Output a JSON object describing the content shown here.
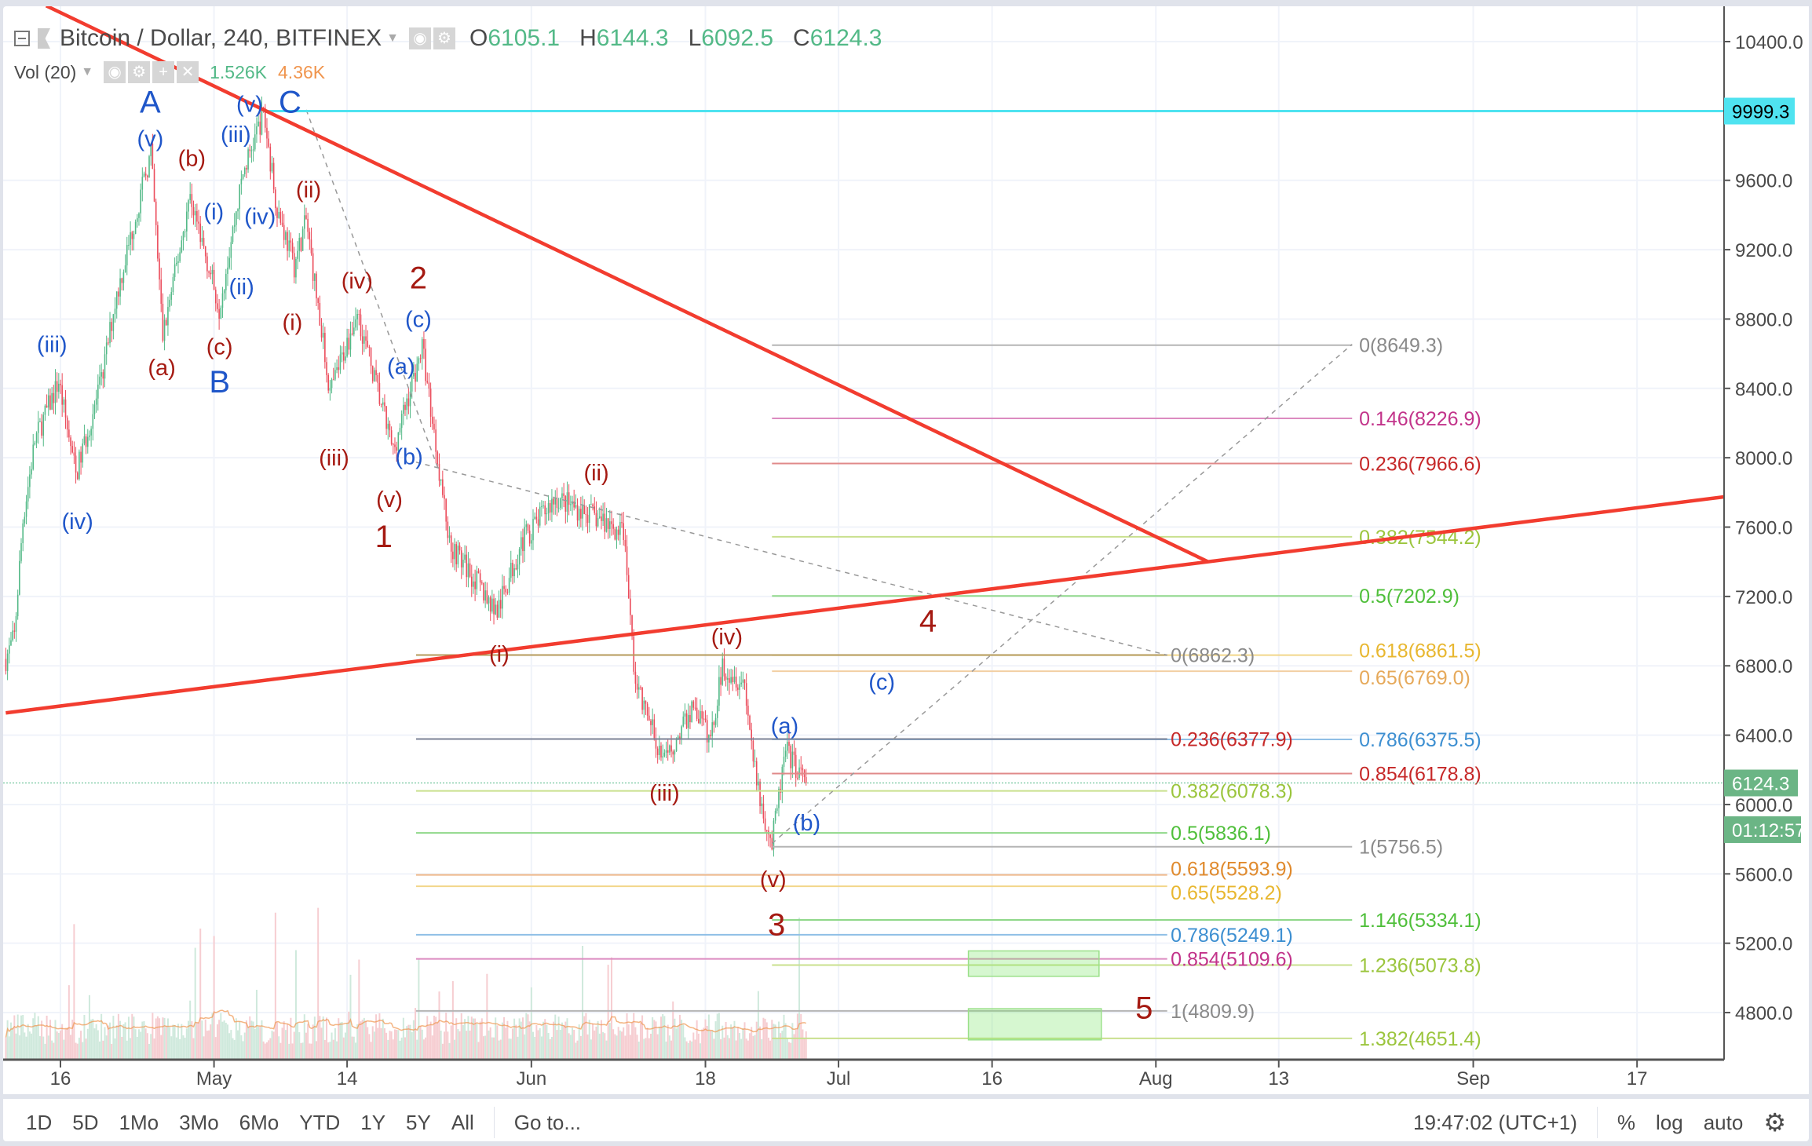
{
  "header": {
    "symbol_title": "Bitcoin / Dollar, 240, BITFINEX",
    "ohlc": [
      {
        "label": "O",
        "value": "6105.1"
      },
      {
        "label": "H",
        "value": "6144.3"
      },
      {
        "label": "L",
        "value": "6092.5"
      },
      {
        "label": "C",
        "value": "6124.3"
      }
    ],
    "volume_indicator": {
      "label": "Vol (20)",
      "value": "1.526K",
      "ma_value": "4.36K"
    }
  },
  "toolbar": {
    "ranges": [
      "1D",
      "5D",
      "1Mo",
      "3Mo",
      "6Mo",
      "YTD",
      "1Y",
      "5Y",
      "All"
    ],
    "goto_label": "Go to...",
    "clock": "19:47:02 (UTC+1)",
    "percent_label": "%",
    "log_label": "log",
    "auto_label": "auto",
    "settings_icon": "gear-icon"
  },
  "colors": {
    "up": "#53b987",
    "down": "#eb4d5c",
    "trendline": "#f23c2f",
    "horizontal_level": "#4fe3f0",
    "wave_blue": "#1f56c9",
    "wave_red": "#a51a12"
  },
  "chart_data": {
    "type": "candlestick",
    "interval": "240",
    "y_ticks": [
      "10400.0",
      "9600.0",
      "9200.0",
      "8800.0",
      "8400.0",
      "8000.0",
      "7600.0",
      "7200.0",
      "6800.0",
      "6400.0",
      "6000.0",
      "5600.0",
      "5200.0",
      "4800.0"
    ],
    "x_ticks": [
      {
        "label": "16",
        "date": "2018-04-16"
      },
      {
        "label": "May",
        "date": "2018-05-01"
      },
      {
        "label": "14",
        "date": "2018-05-14"
      },
      {
        "label": "Jun",
        "date": "2018-06-01"
      },
      {
        "label": "18",
        "date": "2018-06-18"
      },
      {
        "label": "Jul",
        "date": "2018-07-01"
      },
      {
        "label": "16",
        "date": "2018-07-16"
      },
      {
        "label": "Aug",
        "date": "2018-08-01"
      },
      {
        "label": "13",
        "date": "2018-08-13"
      },
      {
        "label": "Sep",
        "date": "2018-09-01"
      },
      {
        "label": "17",
        "date": "2018-09-17"
      }
    ],
    "price_path": [
      [
        "2018-04-10T16:00",
        6840
      ],
      [
        "2018-04-11T12:00",
        6970
      ],
      [
        "2018-04-12T08:00",
        7640
      ],
      [
        "2018-04-13T12:00",
        8100
      ],
      [
        "2018-04-15T20:00",
        8440
      ],
      [
        "2018-04-17T12:00",
        7900
      ],
      [
        "2018-04-20T00:00",
        8440
      ],
      [
        "2018-04-21T08:00",
        8900
      ],
      [
        "2018-04-24T20:00",
        9760
      ],
      [
        "2018-04-26T00:00",
        8700
      ],
      [
        "2018-04-28T16:00",
        9510
      ],
      [
        "2018-05-01T12:00",
        8870
      ],
      [
        "2018-05-03T20:00",
        9640
      ],
      [
        "2018-05-05T20:00",
        9990
      ],
      [
        "2018-05-07T04:00",
        9440
      ],
      [
        "2018-05-08T20:00",
        9110
      ],
      [
        "2018-05-10T00:00",
        9370
      ],
      [
        "2018-05-12T08:00",
        8370
      ],
      [
        "2018-05-15T00:00",
        8840
      ],
      [
        "2018-05-18T12:00",
        8040
      ],
      [
        "2018-05-21T08:00",
        8640
      ],
      [
        "2018-05-24T00:00",
        7510
      ],
      [
        "2018-05-28T16:00",
        7110
      ],
      [
        "2018-05-31T00:00",
        7510
      ],
      [
        "2018-06-03T08:00",
        7770
      ],
      [
        "2018-06-07T20:00",
        7640
      ],
      [
        "2018-06-10T00:00",
        7570
      ],
      [
        "2018-06-11T04:00",
        6700
      ],
      [
        "2018-06-14T00:00",
        6240
      ],
      [
        "2018-06-16T20:00",
        6570
      ],
      [
        "2018-06-18T12:00",
        6370
      ],
      [
        "2018-06-19T16:00",
        6800
      ],
      [
        "2018-06-21T20:00",
        6700
      ],
      [
        "2018-06-23T00:00",
        6100
      ],
      [
        "2018-06-24T12:00",
        5770
      ],
      [
        "2018-06-25T20:00",
        6310
      ],
      [
        "2018-06-27T20:00",
        6124.3
      ]
    ],
    "last_price": "6124.3",
    "countdown": "01:12:57",
    "horizontal_level": "9999.3",
    "fib_extension": [
      {
        "label": "0(8649.3)",
        "price": 8649.3,
        "color": "#8a8a8a",
        "line": "#b5b5b5"
      },
      {
        "label": "0.146(8226.9)",
        "price": 8226.9,
        "color": "#c2338a",
        "line": "#dc8bc0"
      },
      {
        "label": "0.236(7966.6)",
        "price": 7966.6,
        "color": "#c62828",
        "line": "#e08a8a"
      },
      {
        "label": "0.382(7544.2)",
        "price": 7544.2,
        "color": "#9bc53d",
        "line": "#c9e08e"
      },
      {
        "label": "0.5(7202.9)",
        "price": 7202.9,
        "color": "#4fbf3a",
        "line": "#8fd88a"
      },
      {
        "label": "0.618(6861.5)",
        "price": 6861.5,
        "color": "#e8b730",
        "line": "#f2d68a"
      },
      {
        "label": "0.65(6769.0)",
        "price": 6769.0,
        "color": "#e6a95a",
        "line": "#f2cfa3"
      },
      {
        "label": "0.786(6375.5)",
        "price": 6375.5,
        "color": "#3d8fd1",
        "line": "#8fbfe6"
      },
      {
        "label": "0.854(6178.8)",
        "price": 6178.8,
        "color": "#c62828",
        "line": "#e08a8a"
      },
      {
        "label": "1(5756.5)",
        "price": 5756.5,
        "color": "#8a8a8a",
        "line": "#b5b5b5"
      },
      {
        "label": "1.146(5334.1)",
        "price": 5334.1,
        "color": "#4fbf3a",
        "line": "#8fd88a"
      },
      {
        "label": "1.236(5073.8)",
        "price": 5073.8,
        "color": "#9bc53d",
        "line": "#c9e08e"
      },
      {
        "label": "1.382(4651.4)",
        "price": 4651.4,
        "color": "#9bc53d",
        "line": "#c9e08e"
      }
    ],
    "fib_retracement": [
      {
        "label": "0(6862.3)",
        "price": 6862.3,
        "color": "#8a8a8a",
        "line": "#b59a5a"
      },
      {
        "label": "0.236(6377.9)",
        "price": 6377.9,
        "color": "#c62828",
        "line": "#7b8296"
      },
      {
        "label": "0.382(6078.3)",
        "price": 6078.3,
        "color": "#9bc53d",
        "line": "#c9e08e"
      },
      {
        "label": "0.5(5836.1)",
        "price": 5836.1,
        "color": "#4fbf3a",
        "line": "#8fd88a"
      },
      {
        "label": "0.618(5593.9)",
        "price": 5593.9,
        "color": "#e08a2d",
        "line": "#eeb88a"
      },
      {
        "label": "0.65(5528.2)",
        "price": 5528.2,
        "color": "#e8b730",
        "line": "#f2d68a"
      },
      {
        "label": "0.786(5249.1)",
        "price": 5249.1,
        "color": "#3d8fd1",
        "line": "#8fbfe6"
      },
      {
        "label": "0.854(5109.6)",
        "price": 5109.6,
        "color": "#c2338a",
        "line": "#dc8bc0"
      },
      {
        "label": "1(4809.9)",
        "price": 4809.9,
        "color": "#8a8a8a",
        "line": "#b5b5b5"
      }
    ],
    "wave_labels": [
      {
        "text": "A",
        "color": "blue"
      },
      {
        "text": "(v)",
        "color": "blue"
      },
      {
        "text": "(iii)",
        "color": "blue"
      },
      {
        "text": "(iv)",
        "color": "blue"
      },
      {
        "text": "(i)",
        "color": "blue"
      },
      {
        "text": "(iv)",
        "color": "blue"
      },
      {
        "text": "(ii)",
        "color": "blue"
      },
      {
        "text": "B",
        "color": "blue"
      },
      {
        "text": "C",
        "color": "blue"
      },
      {
        "text": "(v)",
        "color": "blue"
      },
      {
        "text": "(iii)",
        "color": "blue"
      },
      {
        "text": "(c)",
        "color": "blue"
      },
      {
        "text": "(a)",
        "color": "blue"
      },
      {
        "text": "(b)",
        "color": "blue"
      },
      {
        "text": "(c)",
        "color": "blue"
      },
      {
        "text": "(a)",
        "color": "blue"
      },
      {
        "text": "(b)",
        "color": "blue"
      },
      {
        "text": "(b)",
        "color": "red"
      },
      {
        "text": "(a)",
        "color": "red"
      },
      {
        "text": "(c)",
        "color": "red"
      },
      {
        "text": "(ii)",
        "color": "red"
      },
      {
        "text": "(i)",
        "color": "red"
      },
      {
        "text": "(iv)",
        "color": "red"
      },
      {
        "text": "2",
        "color": "red"
      },
      {
        "text": "(iii)",
        "color": "red"
      },
      {
        "text": "(v)",
        "color": "red"
      },
      {
        "text": "1",
        "color": "red"
      },
      {
        "text": "(ii)",
        "color": "red"
      },
      {
        "text": "(i)",
        "color": "red"
      },
      {
        "text": "(iv)",
        "color": "red"
      },
      {
        "text": "(iii)",
        "color": "red"
      },
      {
        "text": "(v)",
        "color": "red"
      },
      {
        "text": "3",
        "color": "red"
      },
      {
        "text": "4",
        "color": "red"
      },
      {
        "text": "5",
        "color": "red"
      }
    ]
  }
}
